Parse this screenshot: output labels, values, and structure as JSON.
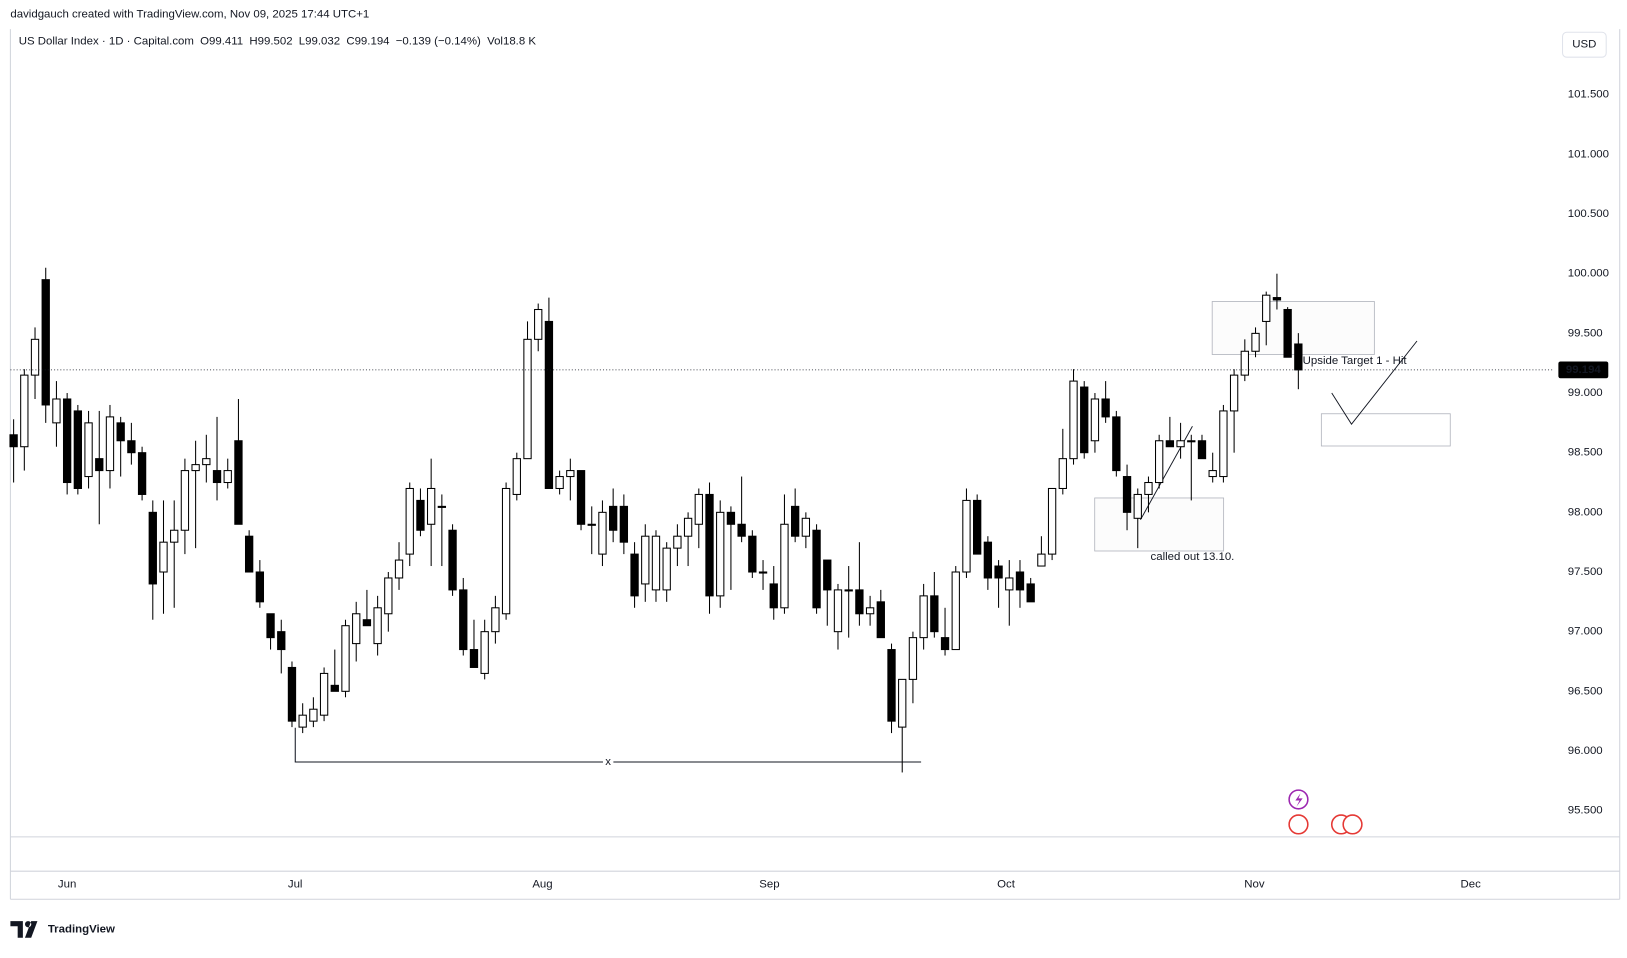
{
  "header": {
    "attribution": "davidgauch created with TradingView.com, Nov 09, 2025 17:44 UTC+1",
    "currency": "USD"
  },
  "chart_data": {
    "type": "candlestick",
    "legend": {
      "title": "US Dollar Index · 1D · Capital.com",
      "items": [
        "O99.411",
        "H99.502",
        "L99.032",
        "C99.194",
        "−0.139 (−0.14%)",
        "Vol18.8 K"
      ]
    },
    "annotations": [
      "Upside Target 1 - Hit",
      "called out 13.10.",
      "x"
    ],
    "xlim": [
      -0.3,
      143.9
    ],
    "xticks": [
      {
        "value": 5.0,
        "label": "Jun"
      },
      {
        "value": 26.3,
        "label": "Jul"
      },
      {
        "value": 49.4,
        "label": "Aug"
      },
      {
        "value": 70.6,
        "label": "Sep"
      },
      {
        "value": 92.7,
        "label": "Oct"
      },
      {
        "value": 115.9,
        "label": "Nov"
      },
      {
        "value": 136.1,
        "label": "Dec"
      }
    ],
    "ylim": [
      95.28,
      102.05
    ],
    "yticks": [
      {
        "value": 95.5,
        "label": "95.500"
      },
      {
        "value": 96,
        "label": "96.000"
      },
      {
        "value": 96.5,
        "label": "96.500"
      },
      {
        "value": 97,
        "label": "97.000"
      },
      {
        "value": 97.5,
        "label": "97.500"
      },
      {
        "value": 98,
        "label": "98.000"
      },
      {
        "value": 98.5,
        "label": "98.500"
      },
      {
        "value": 99,
        "label": "99.000"
      },
      {
        "value": 99.5,
        "label": "99.500"
      },
      {
        "value": 100,
        "label": "100.000"
      },
      {
        "value": 100.5,
        "label": "100.500"
      },
      {
        "value": 101,
        "label": "101.000"
      },
      {
        "value": 101.5,
        "label": "101.500"
      }
    ],
    "up_color": "#ffffff",
    "down_color": "#000000",
    "series": [
      {
        "open": [
          98.65,
          98.55,
          99.15,
          99.95,
          98.75,
          98.95,
          98.85,
          98.3,
          98.45,
          98.35,
          98.75,
          98.6,
          98.5,
          98.0,
          97.5,
          97.75,
          97.85,
          98.35,
          98.4,
          98.35,
          98.25,
          98.6,
          97.8,
          97.5,
          97.15,
          97.0,
          96.7,
          96.2,
          96.25,
          96.3,
          96.55,
          96.5,
          96.9,
          97.1,
          96.9,
          97.15,
          97.45,
          97.65,
          98.1,
          97.9,
          98.05,
          97.85,
          97.35,
          96.85,
          96.65,
          97.0,
          97.15,
          98.15,
          98.45,
          99.45,
          99.6,
          98.2,
          98.3,
          98.35,
          97.9,
          97.65,
          98.05,
          98.05,
          97.65,
          97.4,
          97.35,
          97.35,
          97.7,
          97.8,
          97.9,
          98.15,
          97.3,
          98.0,
          97.9,
          97.8,
          97.5,
          97.4,
          97.2,
          98.05,
          97.8,
          97.85,
          97.6,
          97.0,
          97.35,
          97.35,
          97.15,
          97.25,
          96.85,
          96.2,
          96.6,
          96.95,
          97.3,
          96.95,
          96.85,
          97.5,
          98.1,
          97.75,
          97.55,
          97.35,
          97.5,
          97.4,
          97.55,
          97.65,
          98.2,
          98.45,
          99.05,
          98.6,
          98.95,
          98.8,
          98.3,
          97.95,
          98.15,
          98.25,
          98.6,
          98.55,
          98.6,
          98.6,
          98.3,
          98.3,
          98.85,
          99.15,
          99.35,
          99.6,
          99.8,
          99.7,
          99.411
        ],
        "high": [
          98.78,
          99.2,
          99.55,
          100.05,
          99.1,
          99.0,
          98.9,
          98.85,
          98.85,
          98.9,
          98.8,
          98.75,
          98.55,
          98.1,
          98.1,
          98.1,
          98.45,
          98.6,
          98.65,
          98.8,
          98.45,
          98.95,
          97.85,
          97.6,
          97.15,
          97.1,
          96.75,
          96.4,
          96.45,
          96.7,
          96.85,
          97.1,
          97.25,
          97.35,
          97.3,
          97.5,
          97.75,
          98.25,
          98.2,
          98.45,
          98.15,
          97.9,
          97.45,
          97.1,
          97.1,
          97.3,
          98.25,
          98.5,
          99.6,
          99.75,
          99.8,
          98.35,
          98.45,
          98.35,
          98.05,
          98.1,
          98.2,
          98.15,
          97.75,
          97.9,
          97.85,
          97.75,
          97.9,
          98.0,
          98.2,
          98.25,
          98.1,
          98.05,
          98.3,
          97.85,
          97.6,
          97.55,
          98.15,
          98.2,
          98.0,
          97.9,
          97.6,
          97.4,
          97.55,
          97.75,
          97.3,
          97.35,
          96.9,
          96.6,
          97.0,
          97.4,
          97.5,
          97.2,
          97.55,
          98.2,
          98.15,
          97.8,
          97.6,
          97.6,
          97.6,
          97.45,
          97.8,
          98.2,
          98.7,
          99.2,
          99.1,
          99.0,
          99.1,
          98.85,
          98.4,
          98.2,
          98.3,
          98.65,
          98.8,
          98.75,
          98.65,
          98.65,
          98.5,
          98.9,
          99.2,
          99.45,
          99.55,
          99.85,
          100.0,
          99.72,
          99.502
        ],
        "low": [
          98.25,
          98.35,
          98.95,
          98.75,
          98.55,
          98.15,
          98.15,
          98.2,
          97.9,
          98.2,
          98.3,
          98.4,
          98.1,
          97.1,
          97.15,
          97.2,
          97.65,
          97.7,
          98.25,
          98.1,
          98.2,
          97.9,
          97.5,
          97.2,
          96.85,
          96.65,
          96.2,
          96.15,
          96.2,
          96.25,
          96.5,
          96.45,
          96.75,
          97.05,
          96.8,
          97.0,
          97.35,
          97.55,
          97.8,
          97.55,
          97.55,
          97.3,
          96.8,
          96.7,
          96.6,
          96.9,
          97.1,
          98.1,
          98.45,
          99.35,
          98.2,
          98.15,
          98.1,
          97.85,
          97.65,
          97.55,
          97.75,
          97.65,
          97.2,
          97.25,
          97.25,
          97.25,
          97.55,
          97.55,
          97.7,
          97.15,
          97.2,
          97.35,
          97.75,
          97.45,
          97.35,
          97.1,
          97.15,
          97.75,
          97.7,
          97.15,
          97.05,
          96.85,
          96.95,
          97.05,
          97.05,
          96.95,
          96.15,
          95.82,
          96.4,
          96.85,
          96.95,
          96.8,
          96.85,
          97.45,
          97.65,
          97.35,
          97.2,
          97.05,
          97.2,
          97.25,
          97.55,
          97.6,
          98.15,
          98.4,
          98.45,
          98.5,
          98.75,
          98.3,
          97.85,
          97.7,
          98.0,
          98.2,
          98.55,
          98.45,
          98.1,
          98.45,
          98.25,
          98.25,
          98.5,
          99.1,
          99.3,
          99.4,
          99.7,
          99.3,
          99.032
        ],
        "close": [
          98.55,
          99.15,
          99.45,
          98.9,
          98.95,
          98.25,
          98.2,
          98.75,
          98.35,
          98.8,
          98.6,
          98.5,
          98.15,
          97.4,
          97.75,
          97.85,
          98.35,
          98.4,
          98.45,
          98.25,
          98.35,
          97.9,
          97.5,
          97.25,
          96.95,
          96.85,
          96.25,
          96.3,
          96.35,
          96.65,
          96.5,
          97.05,
          97.15,
          97.05,
          97.2,
          97.45,
          97.6,
          98.2,
          97.85,
          98.2,
          98.05,
          97.35,
          96.85,
          96.7,
          97.0,
          97.2,
          98.2,
          98.45,
          99.45,
          99.7,
          98.2,
          98.3,
          98.35,
          97.9,
          97.9,
          98.0,
          97.85,
          97.75,
          97.3,
          97.8,
          97.8,
          97.7,
          97.8,
          97.95,
          98.15,
          97.3,
          98.0,
          97.9,
          97.8,
          97.5,
          97.5,
          97.2,
          97.9,
          97.8,
          97.95,
          97.2,
          97.35,
          97.35,
          97.35,
          97.15,
          97.2,
          96.95,
          96.25,
          96.6,
          96.95,
          97.3,
          97.0,
          96.85,
          97.5,
          98.1,
          97.65,
          97.45,
          97.45,
          97.45,
          97.35,
          97.25,
          97.65,
          98.2,
          98.45,
          99.1,
          98.5,
          98.95,
          98.8,
          98.35,
          98.0,
          98.15,
          98.25,
          98.6,
          98.55,
          98.6,
          98.6,
          98.45,
          98.35,
          98.85,
          99.15,
          99.35,
          99.5,
          99.82,
          99.78,
          99.3,
          99.194
        ]
      }
    ]
  },
  "brand": "TradingView"
}
